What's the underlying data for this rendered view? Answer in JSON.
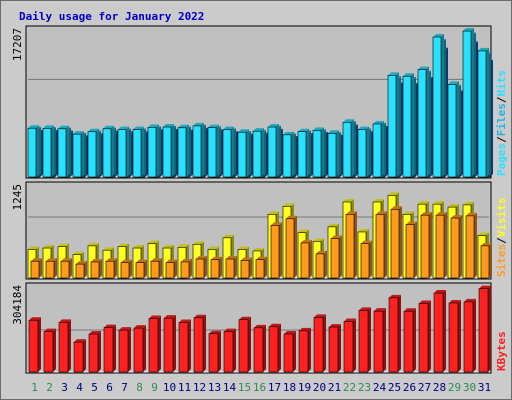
{
  "colors": {
    "page_bg": "#cbcbcb",
    "plot_bg": "#c0c0c0",
    "title": "#0000c8",
    "hits": "#27e1ff",
    "files": "#21b4e6",
    "pages": "#1a6ab4",
    "visits": "#ffff20",
    "sites": "#ff9a1f",
    "kbytes": "#ff2020",
    "weekend_day": "#2e8b57",
    "weekday": "#000080"
  },
  "chart_data": [
    {
      "type": "bar",
      "title": "Daily usage for January 2022",
      "y_max_label": "17207",
      "legend": [
        "Pages",
        "Files",
        "Hits"
      ],
      "ymax": 17207,
      "categories": [
        "1",
        "2",
        "3",
        "4",
        "5",
        "6",
        "7",
        "8",
        "9",
        "10",
        "11",
        "12",
        "13",
        "14",
        "15",
        "16",
        "17",
        "18",
        "19",
        "20",
        "21",
        "22",
        "23",
        "24",
        "25",
        "26",
        "27",
        "28",
        "29",
        "30",
        "31"
      ],
      "weekend_days": [
        "1",
        "2",
        "8",
        "9",
        "15",
        "16",
        "22",
        "23",
        "29",
        "30"
      ],
      "series": [
        {
          "name": "Hits",
          "values": [
            5750,
            5730,
            5680,
            5050,
            5330,
            5680,
            5580,
            5580,
            5850,
            5890,
            5800,
            6020,
            5820,
            5590,
            5280,
            5400,
            5890,
            4970,
            5340,
            5490,
            5150,
            6450,
            5590,
            6250,
            11980,
            11880,
            12650,
            16500,
            10910,
            17200,
            14860
          ]
        },
        {
          "name": "Files",
          "values": [
            5560,
            5520,
            5470,
            4840,
            5110,
            5460,
            5360,
            5360,
            5620,
            5670,
            5580,
            5800,
            5610,
            5380,
            5060,
            5190,
            5680,
            4770,
            5120,
            5280,
            4930,
            6220,
            5380,
            6030,
            11520,
            11430,
            12170,
            15900,
            10510,
            16660,
            14340
          ]
        },
        {
          "name": "Pages",
          "values": [
            5200,
            5180,
            5120,
            4550,
            4800,
            5120,
            5020,
            5030,
            5270,
            5310,
            5230,
            5440,
            5260,
            5040,
            4750,
            4870,
            5320,
            4480,
            4810,
            4950,
            4630,
            5830,
            5040,
            5660,
            10800,
            10720,
            11410,
            14900,
            9860,
            15630,
            13450
          ]
        }
      ]
    },
    {
      "type": "bar",
      "y_max_label": "1245",
      "legend": [
        "Sites",
        "Visits"
      ],
      "ymax": 1245,
      "categories": [
        "1",
        "2",
        "3",
        "4",
        "5",
        "6",
        "7",
        "8",
        "9",
        "10",
        "11",
        "12",
        "13",
        "14",
        "15",
        "16",
        "17",
        "18",
        "19",
        "20",
        "21",
        "22",
        "23",
        "24",
        "25",
        "26",
        "27",
        "28",
        "29",
        "30",
        "31"
      ],
      "series": [
        {
          "name": "Visits",
          "values": [
            390,
            410,
            430,
            320,
            440,
            380,
            430,
            410,
            470,
            410,
            420,
            460,
            390,
            550,
            390,
            370,
            870,
            980,
            620,
            500,
            700,
            1040,
            630,
            1040,
            1130,
            870,
            1010,
            1010,
            970,
            1000,
            580
          ]
        },
        {
          "name": "Sites",
          "values": [
            230,
            230,
            230,
            190,
            220,
            230,
            210,
            210,
            230,
            210,
            220,
            260,
            250,
            260,
            240,
            250,
            720,
            810,
            480,
            330,
            540,
            870,
            470,
            870,
            940,
            730,
            860,
            860,
            820,
            850,
            440
          ]
        }
      ]
    },
    {
      "type": "bar",
      "y_max_label": "304184",
      "legend": [
        "KBytes"
      ],
      "ymax": 304184,
      "categories": [
        "1",
        "2",
        "3",
        "4",
        "5",
        "6",
        "7",
        "8",
        "9",
        "10",
        "11",
        "12",
        "13",
        "14",
        "15",
        "16",
        "17",
        "18",
        "19",
        "20",
        "21",
        "22",
        "23",
        "24",
        "25",
        "26",
        "27",
        "28",
        "29",
        "30",
        "31"
      ],
      "series": [
        {
          "name": "KBytes",
          "values": [
            187500,
            146300,
            179600,
            108300,
            137400,
            160900,
            151500,
            159000,
            193800,
            195000,
            179400,
            196600,
            138700,
            146000,
            189400,
            160000,
            163700,
            137400,
            149000,
            197600,
            162700,
            182700,
            223200,
            220300,
            268500,
            220100,
            247900,
            285900,
            250000,
            254000,
            301800
          ]
        }
      ]
    }
  ]
}
